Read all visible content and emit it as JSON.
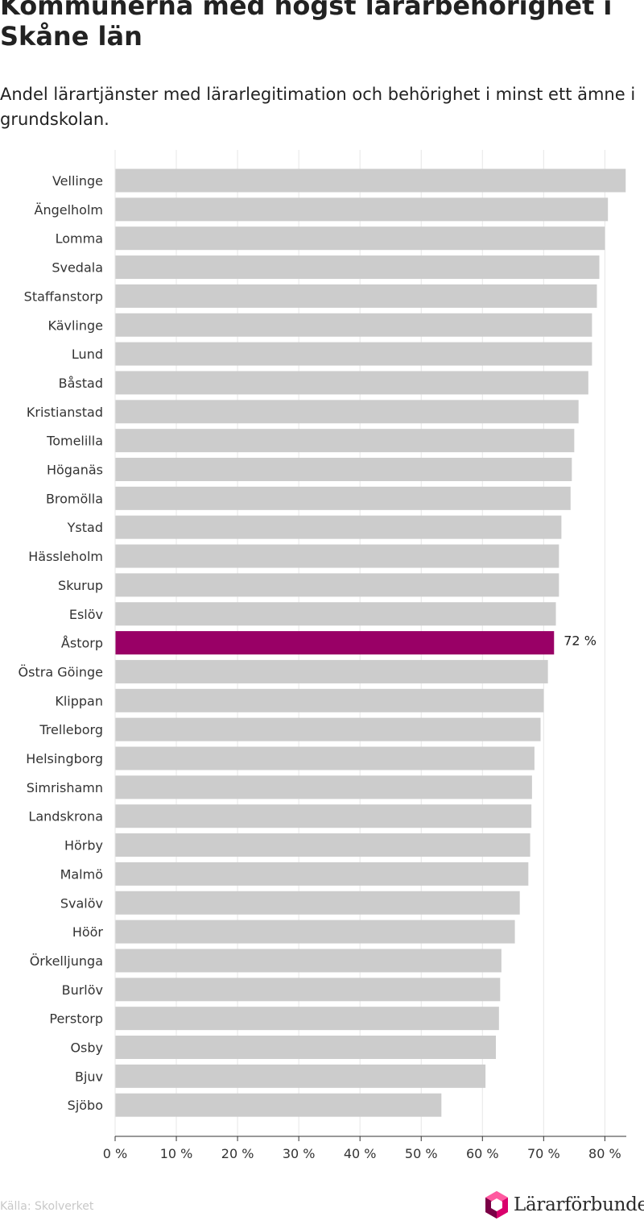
{
  "title": "Kommunerna med högst lärarbehörighet i Skåne län",
  "subtitle": "Andel lärartjänster med lärarlegitimation och behörighet i minst ett ämne i grundskolan.",
  "source": "Källa: Skolverket",
  "logo": {
    "text": "Lärarförbundet",
    "icon": "hexagon-logo-icon"
  },
  "colors": {
    "bar": "#cccccc",
    "highlight": "#990066",
    "grid": "#e6e6e6",
    "axis": "#333333"
  },
  "chart_data": {
    "type": "bar",
    "orientation": "horizontal",
    "title": "Kommunerna med högst lärarbehörighet i Skåne län",
    "subtitle": "Andel lärartjänster med lärarlegitimation och behörighet i minst ett ämne i grundskolan.",
    "xlabel": "",
    "ylabel": "",
    "xlim": [
      0,
      83.5
    ],
    "x_ticks": [
      0,
      10,
      20,
      30,
      40,
      50,
      60,
      70,
      80
    ],
    "x_tick_labels": [
      "0 %",
      "10 %",
      "20 %",
      "30 %",
      "40 %",
      "50 %",
      "60 %",
      "70 %",
      "80 %"
    ],
    "grid": true,
    "highlight": "Åstorp",
    "categories": [
      "Vellinge",
      "Ängelholm",
      "Lomma",
      "Svedala",
      "Staffanstorp",
      "Kävlinge",
      "Lund",
      "Båstad",
      "Kristianstad",
      "Tomelilla",
      "Höganäs",
      "Bromölla",
      "Ystad",
      "Hässleholm",
      "Skurup",
      "Eslöv",
      "Åstorp",
      "Östra Göinge",
      "Klippan",
      "Trelleborg",
      "Helsingborg",
      "Simrishamn",
      "Landskrona",
      "Hörby",
      "Malmö",
      "Svalöv",
      "Höör",
      "Örkelljunga",
      "Burlöv",
      "Perstorp",
      "Osby",
      "Bjuv",
      "Sjöbo"
    ],
    "values": [
      83.4,
      80.5,
      80.0,
      79.1,
      78.7,
      77.9,
      77.9,
      77.3,
      75.7,
      75.0,
      74.6,
      74.4,
      72.9,
      72.5,
      72.5,
      72.0,
      71.7,
      70.7,
      70.0,
      69.5,
      68.5,
      68.1,
      68.0,
      67.8,
      67.5,
      66.1,
      65.3,
      63.1,
      62.9,
      62.7,
      62.2,
      60.5,
      53.3
    ],
    "data_labels": [
      {
        "category": "Åstorp",
        "text": "72 %"
      }
    ]
  }
}
